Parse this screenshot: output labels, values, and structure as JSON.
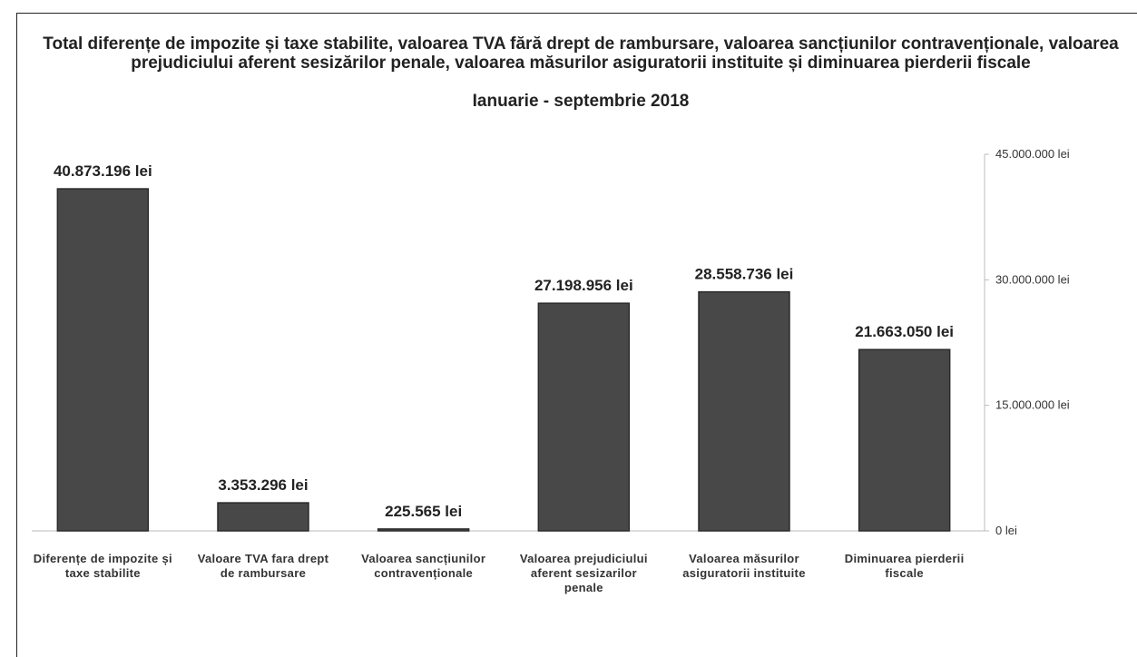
{
  "chart_data": {
    "type": "bar",
    "title": "Total diferențe de impozite și taxe stabilite, valoarea TVA fără drept de rambursare, valoarea sancțiunilor contravenționale, valoarea prejudiciului aferent sesizărilor penale, valoarea măsurilor asiguratorii instituite și diminuarea pierderii fiscale",
    "subtitle": "Ianuarie - septembrie 2018",
    "categories": [
      "Diferențe de impozite și taxe stabilite",
      "Valoare TVA fara drept de rambursare",
      "Valoarea sancțiunilor contravenționale",
      "Valoarea prejudiciului aferent sesizarilor penale",
      "Valoarea măsurilor asiguratorii instituite",
      "Diminuarea pierderii fiscale"
    ],
    "values": [
      40873196,
      3353296,
      225565,
      27198956,
      28558736,
      21663050
    ],
    "value_labels": [
      "40.873.196 lei",
      "3.353.296 lei",
      "225.565 lei",
      "27.198.956 lei",
      "28.558.736 lei",
      "21.663.050 lei"
    ],
    "color": "#484848",
    "ylim": [
      0,
      45000000
    ],
    "yticks": [
      {
        "value": 0,
        "label": "0 lei"
      },
      {
        "value": 15000000,
        "label": "15.000.000 lei"
      },
      {
        "value": 30000000,
        "label": "30.000.000 lei"
      },
      {
        "value": 45000000,
        "label": "45.000.000 lei"
      }
    ]
  }
}
